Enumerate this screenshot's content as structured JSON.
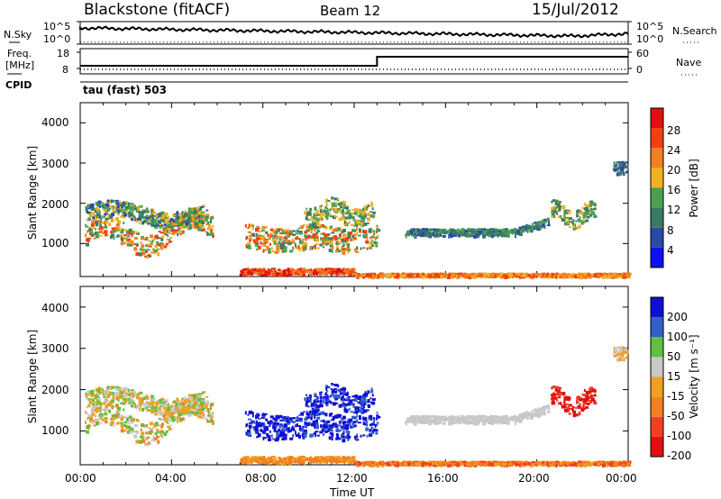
{
  "header": {
    "station": "Blackstone (fitACF)",
    "beam": "Beam 12",
    "date": "15/Jul/2012"
  },
  "top_strip": {
    "left_label": "N.Sky",
    "right_label": "N.Search",
    "ticks": [
      "10^5",
      "10^0"
    ]
  },
  "freq_strip": {
    "left_label_1": "Freq.",
    "left_label_2": "[MHz]",
    "left_ticks": [
      "18",
      "8"
    ],
    "right_label": "Nave",
    "right_ticks": [
      "60",
      "0"
    ],
    "cpid_label": "CPID"
  },
  "cpid": {
    "mode": "tau (fast) 503"
  },
  "colors": {
    "power": [
      "#1010ee",
      "#2a4aa8",
      "#3a7a62",
      "#4aa050",
      "#f0b020",
      "#f08020",
      "#f04010",
      "#e01010"
    ],
    "velocity": [
      "#e01010",
      "#f04020",
      "#f08020",
      "#f0a020",
      "#c8c8c8",
      "#60c040",
      "#3060c8",
      "#1010d0"
    ]
  },
  "chart_data": [
    {
      "type": "heatmap",
      "title": "Power",
      "ylabel": "Slant Range [km]",
      "ylim": [
        180,
        4500
      ],
      "xlim": [
        "00:00",
        "24:00"
      ],
      "yticks": [
        "1000",
        "2000",
        "3000",
        "4000"
      ],
      "colorbar": {
        "label": "Power [dB]",
        "ticks": [
          "28",
          "24",
          "20",
          "16",
          "12",
          "8",
          "4"
        ],
        "range": [
          0,
          32
        ]
      }
    },
    {
      "type": "heatmap",
      "title": "Velocity",
      "ylabel": "Slant Range [km]",
      "xlabel": "Time UT",
      "xticks": [
        "00:00",
        "04:00",
        "08:00",
        "12:00",
        "16:00",
        "20:00",
        "00:00"
      ],
      "yticks": [
        "1000",
        "2000",
        "3000",
        "4000"
      ],
      "colorbar": {
        "label": "Velocity [m s⁻¹]",
        "ticks": [
          "200",
          "100",
          "50",
          "15",
          "-15",
          "-50",
          "-100",
          "-200"
        ]
      }
    }
  ]
}
